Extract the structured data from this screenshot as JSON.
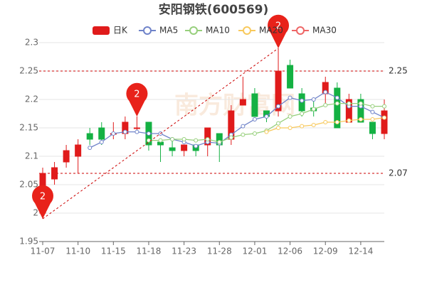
{
  "chart_data": {
    "type": "candlestick",
    "title": "安阳钢铁(600569)",
    "categories": [
      "11-07",
      null,
      null,
      "11-10",
      null,
      null,
      "11-15",
      null,
      null,
      "11-18",
      null,
      null,
      "11-23",
      null,
      null,
      "11-28",
      null,
      null,
      "12-01",
      null,
      null,
      "12-06",
      null,
      null,
      "12-09",
      null,
      null,
      "12-14",
      null,
      null
    ],
    "ohlc": {
      "name": "日K",
      "up_color": "#e01b1b",
      "down_color": "#14b143",
      "open": [
        2.0,
        2.06,
        2.09,
        2.1,
        2.14,
        2.15,
        2.14,
        2.14,
        2.15,
        2.16,
        2.125,
        2.115,
        2.11,
        2.12,
        2.12,
        2.14,
        2.13,
        2.19,
        2.21,
        2.18,
        2.18,
        2.26,
        2.21,
        2.185,
        2.21,
        2.22,
        2.16,
        2.2,
        2.16,
        2.14
      ],
      "close": [
        2.07,
        2.08,
        2.11,
        2.12,
        2.13,
        2.13,
        2.14,
        2.16,
        2.15,
        2.12,
        2.12,
        2.11,
        2.12,
        2.11,
        2.15,
        2.12,
        2.18,
        2.2,
        2.17,
        2.17,
        2.25,
        2.22,
        2.18,
        2.18,
        2.23,
        2.15,
        2.2,
        2.16,
        2.14,
        2.18
      ],
      "high": [
        2.08,
        2.09,
        2.12,
        2.13,
        2.15,
        2.16,
        2.16,
        2.17,
        2.17,
        2.16,
        2.13,
        2.13,
        2.12,
        2.12,
        2.15,
        2.14,
        2.19,
        2.24,
        2.22,
        2.18,
        2.29,
        2.27,
        2.22,
        2.2,
        2.24,
        2.23,
        2.21,
        2.21,
        2.16,
        2.2
      ],
      "low": [
        1.99,
        2.05,
        2.08,
        2.07,
        2.12,
        2.12,
        2.13,
        2.13,
        2.14,
        2.11,
        2.09,
        2.1,
        2.1,
        2.1,
        2.1,
        2.09,
        2.12,
        2.19,
        2.17,
        2.16,
        2.17,
        2.22,
        2.17,
        2.17,
        2.19,
        2.15,
        2.16,
        2.16,
        2.13,
        2.13
      ]
    },
    "series": [
      {
        "name": "MA5",
        "color": "#6f83c9",
        "values": [
          null,
          null,
          null,
          null,
          2.115,
          2.125,
          2.14,
          2.143,
          2.143,
          2.14,
          2.14,
          2.13,
          2.125,
          2.118,
          2.125,
          2.123,
          2.138,
          2.153,
          2.165,
          2.17,
          2.188,
          2.203,
          2.198,
          2.2,
          2.213,
          2.203,
          2.188,
          2.188,
          2.178,
          2.168
        ]
      },
      {
        "name": "MA10",
        "color": "#97cf7c",
        "values": [
          null,
          null,
          null,
          null,
          null,
          null,
          null,
          null,
          null,
          2.128,
          2.128,
          2.13,
          2.13,
          2.128,
          2.13,
          2.125,
          2.133,
          2.138,
          2.14,
          2.145,
          2.158,
          2.17,
          2.175,
          2.183,
          2.19,
          2.193,
          2.193,
          2.193,
          2.188,
          2.188
        ]
      },
      {
        "name": "MA20",
        "color": "#f8c95c",
        "values": [
          null,
          null,
          null,
          null,
          null,
          null,
          null,
          null,
          null,
          null,
          null,
          null,
          null,
          null,
          null,
          null,
          null,
          null,
          null,
          2.143,
          2.15,
          2.15,
          2.153,
          2.155,
          2.16,
          2.16,
          2.163,
          2.165,
          2.165,
          2.168
        ]
      },
      {
        "name": "MA30",
        "color": "#ee6666",
        "values": [
          null,
          null,
          null,
          null,
          null,
          null,
          null,
          null,
          null,
          null,
          null,
          null,
          null,
          null,
          null,
          null,
          null,
          null,
          null,
          null,
          null,
          null,
          null,
          null,
          null,
          null,
          null,
          null,
          null,
          null
        ]
      }
    ],
    "ylim": [
      1.95,
      2.3
    ],
    "yticks": [
      1.95,
      2,
      2.05,
      2.1,
      2.15,
      2.2,
      2.25,
      2.3
    ],
    "grid": true,
    "reference_lines": [
      2.25,
      2.07
    ],
    "markers": [
      {
        "text": "2",
        "index": 0,
        "value": 1.99
      },
      {
        "text": "2",
        "index": 8,
        "value": 2.17
      },
      {
        "text": "2",
        "index": 20,
        "value": 2.29
      }
    ],
    "watermark": "南方财富网"
  }
}
